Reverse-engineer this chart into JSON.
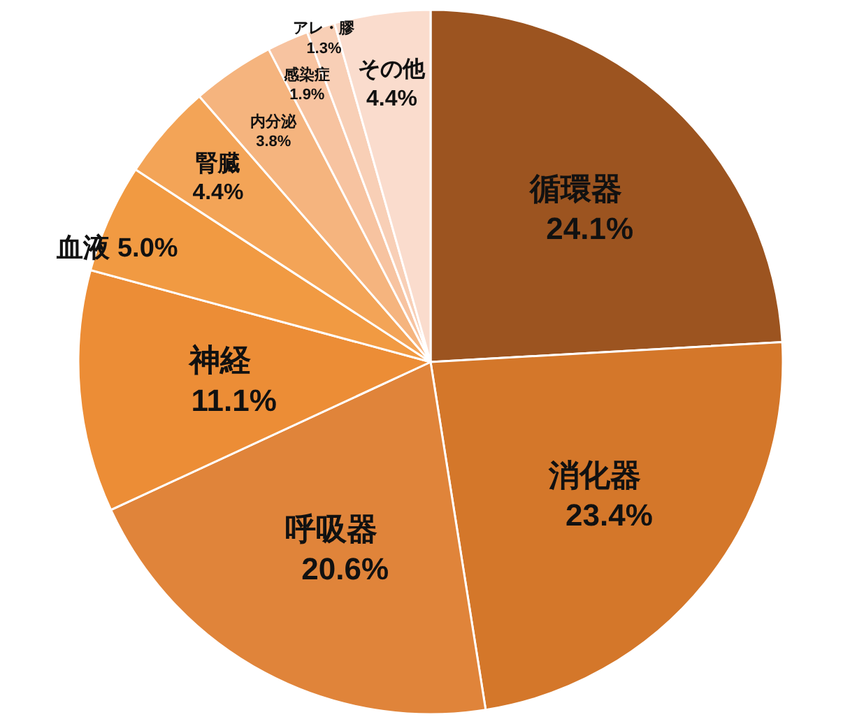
{
  "chart_data": {
    "type": "pie",
    "categories": [
      "循環器",
      "消化器",
      "呼吸器",
      "神経",
      "血液",
      "腎臓",
      "内分泌",
      "感染症",
      "アレ・膠",
      "その他"
    ],
    "values": [
      24.1,
      23.4,
      20.6,
      11.1,
      5.0,
      4.4,
      3.8,
      1.9,
      1.3,
      4.4
    ],
    "colors": [
      "#9c5420",
      "#d4772a",
      "#e0843a",
      "#ec8d36",
      "#f19a42",
      "#f3a457",
      "#f5b47e",
      "#f7c3a0",
      "#f8cfb6",
      "#fadccd"
    ],
    "value_labels": [
      "24.1%",
      "23.4%",
      "20.6%",
      "11.1%",
      "5.0%",
      "4.4%",
      "3.8%",
      "1.9%",
      "1.3%",
      "4.4%"
    ]
  }
}
